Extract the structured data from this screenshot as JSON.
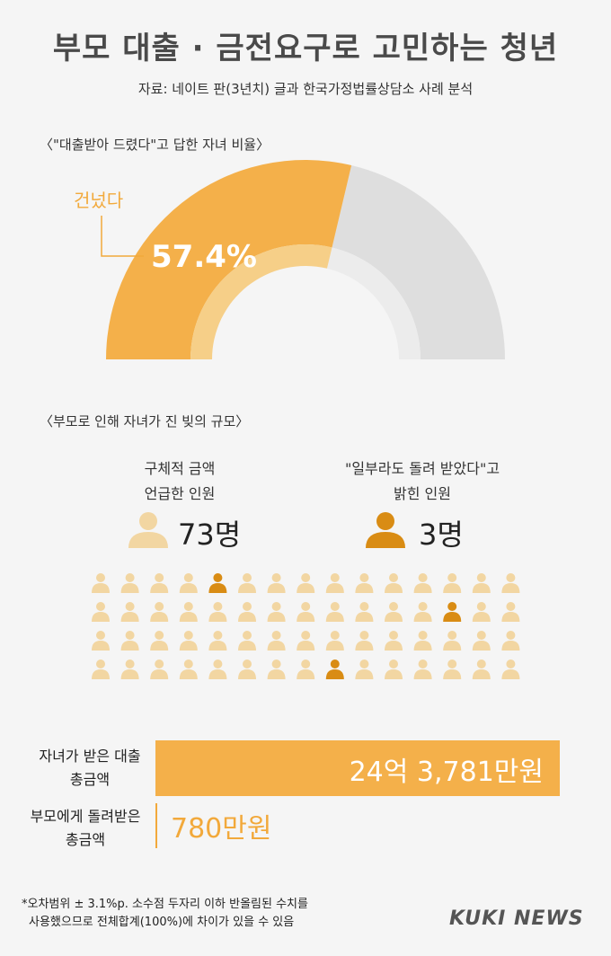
{
  "title": "부모 대출 · 금전요구로 고민하는 청년",
  "source": "자료: 네이트 판(3년치) 글과 한국가정법률상담소 사례 분석",
  "section1": "〈\"대출받아 드렸다\"고 답한 자녀 비율〉",
  "section2": "〈부모로 인해 자녀가 진 빚의 규모〉",
  "donut": {
    "label": "건넜다",
    "pct_text": "57.4%",
    "colors": {
      "main": "#f4b04a",
      "rest": "#dedede",
      "inner_main": "#f6cf88",
      "inner_rest": "#ececec"
    }
  },
  "people": {
    "left_label": [
      "구체적 금액",
      "언급한 인원"
    ],
    "left_count": "73명",
    "right_label": [
      "\"일부라도 돌려 받았다\"고",
      "밝힌 인원"
    ],
    "right_count": "3명",
    "colors": {
      "light": "#f2d6a2",
      "dark": "#d98c14"
    }
  },
  "bars": {
    "received_label": [
      "자녀가 받은 대출",
      "총금액"
    ],
    "received_value": "24억 3,781만원",
    "returned_label": [
      "부모에게 돌려받은",
      "총금액"
    ],
    "returned_value": "780만원"
  },
  "chart_data": [
    {
      "type": "pie",
      "title": "\"대출받아 드렸다\"고 답한 자녀 비율",
      "categories": [
        "건넜다"
      ],
      "values": [
        57.4
      ]
    },
    {
      "type": "bar",
      "title": "부모로 인해 자녀가 진 빚의 규모",
      "categories": [
        "자녀가 받은 대출 총금액",
        "부모에게 돌려받은 총금액"
      ],
      "values": [
        243781,
        780
      ]
    }
  ],
  "note": [
    "*오차범위 ± 3.1%p. 소수점 두자리 이하 반올림된 수치를",
    "사용했으므로 전체합계(100%)에 차이가 있을 수 있음"
  ],
  "logo": "KUKI NEWS"
}
